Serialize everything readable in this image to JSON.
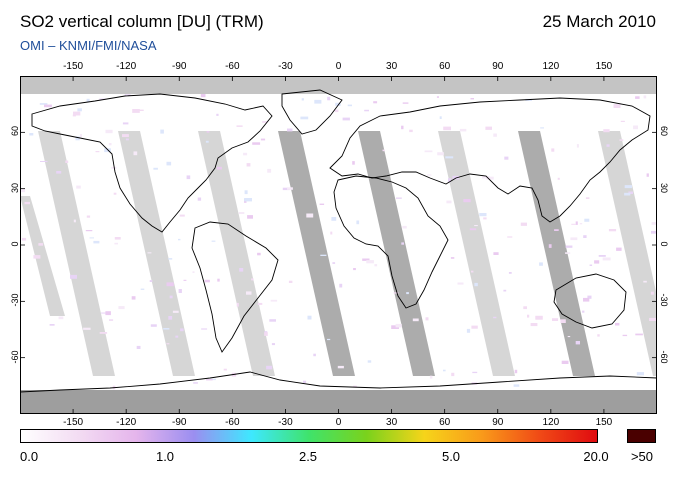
{
  "header": {
    "title": "SO2 vertical column [DU] (TRM)",
    "date": "25 March 2010",
    "subtitle": "OMI  –  KNMI/FMI/NASA"
  },
  "map": {
    "longitude_ticks": [
      "-150",
      "-120",
      "-90",
      "-60",
      "-30",
      "0",
      "30",
      "60",
      "90",
      "120",
      "150"
    ],
    "longitude_values": [
      -150,
      -120,
      -90,
      -60,
      -30,
      0,
      30,
      60,
      90,
      120,
      150
    ],
    "latitude_ticks": [
      "60",
      "30",
      "0",
      "-30",
      "-60"
    ],
    "latitude_values": [
      60,
      30,
      0,
      -30,
      -60
    ],
    "lon_range": [
      -180,
      180
    ],
    "lat_range": [
      -90,
      90
    ],
    "colors": {
      "land_gap": "#9e9e9e",
      "ocean_gap": "#cfcfcf",
      "polar_no_data": "#c4c4c4",
      "coastline": "#000000"
    }
  },
  "colorbar": {
    "labels": [
      "0.0",
      "1.0",
      "2.5",
      "5.0",
      "20.0",
      ">50"
    ],
    "stops": [
      "#ffffff",
      "#f3dcf3",
      "#e5b5ec",
      "#9b8ef0",
      "#3ee8ff",
      "#3fe36b",
      "#7ad21c",
      "#f6d41a",
      "#f99a1a",
      "#f04a16",
      "#e00b10"
    ],
    "overflow_color": "#4a0000"
  }
}
